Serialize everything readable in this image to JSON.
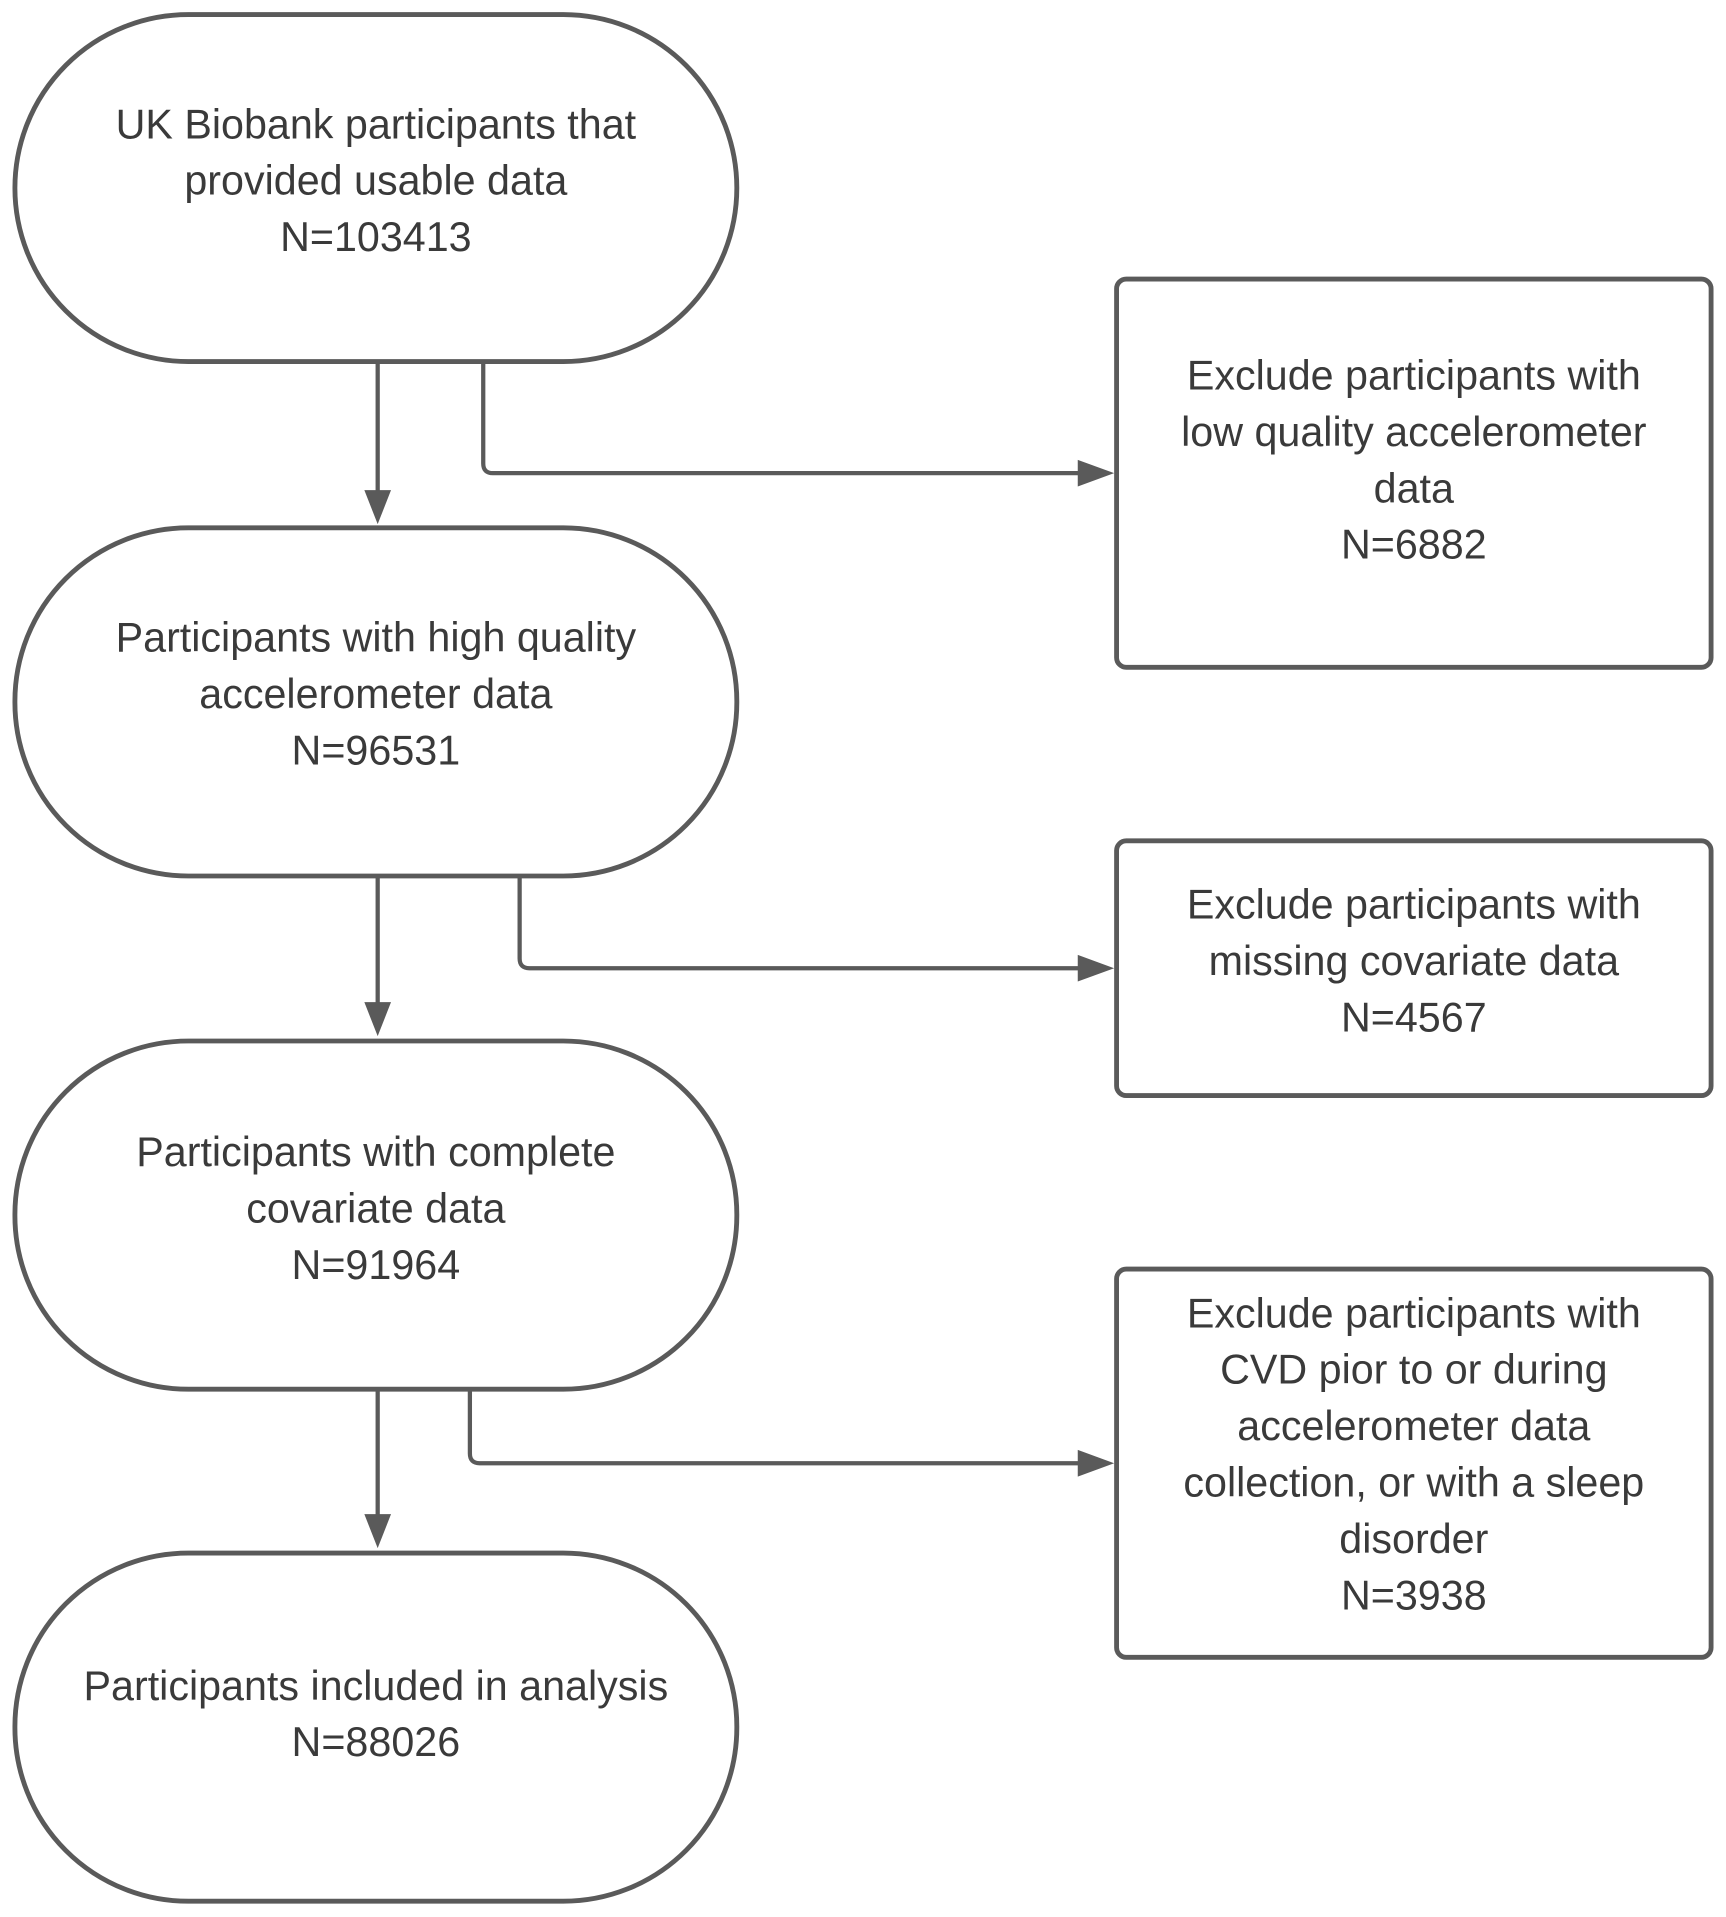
{
  "nodes": [
    {
      "lines": [
        "UK Biobank participants that",
        "provided usable data",
        "N=103413"
      ]
    },
    {
      "lines": [
        "Participants with high quality",
        "accelerometer data",
        "N=96531"
      ]
    },
    {
      "lines": [
        "Participants with complete",
        "covariate data",
        "N=91964"
      ]
    },
    {
      "lines": [
        "Participants included in analysis",
        "N=88026"
      ]
    },
    {
      "lines": [
        "Exclude participants with",
        "low quality accelerometer",
        "data",
        "N=6882"
      ]
    },
    {
      "lines": [
        "Exclude participants with",
        "missing covariate data",
        "N=4567"
      ]
    },
    {
      "lines": [
        "Exclude participants with",
        "CVD pior to or during",
        "accelerometer data",
        "collection, or with a sleep",
        "disorder",
        "N=3938"
      ]
    }
  ]
}
